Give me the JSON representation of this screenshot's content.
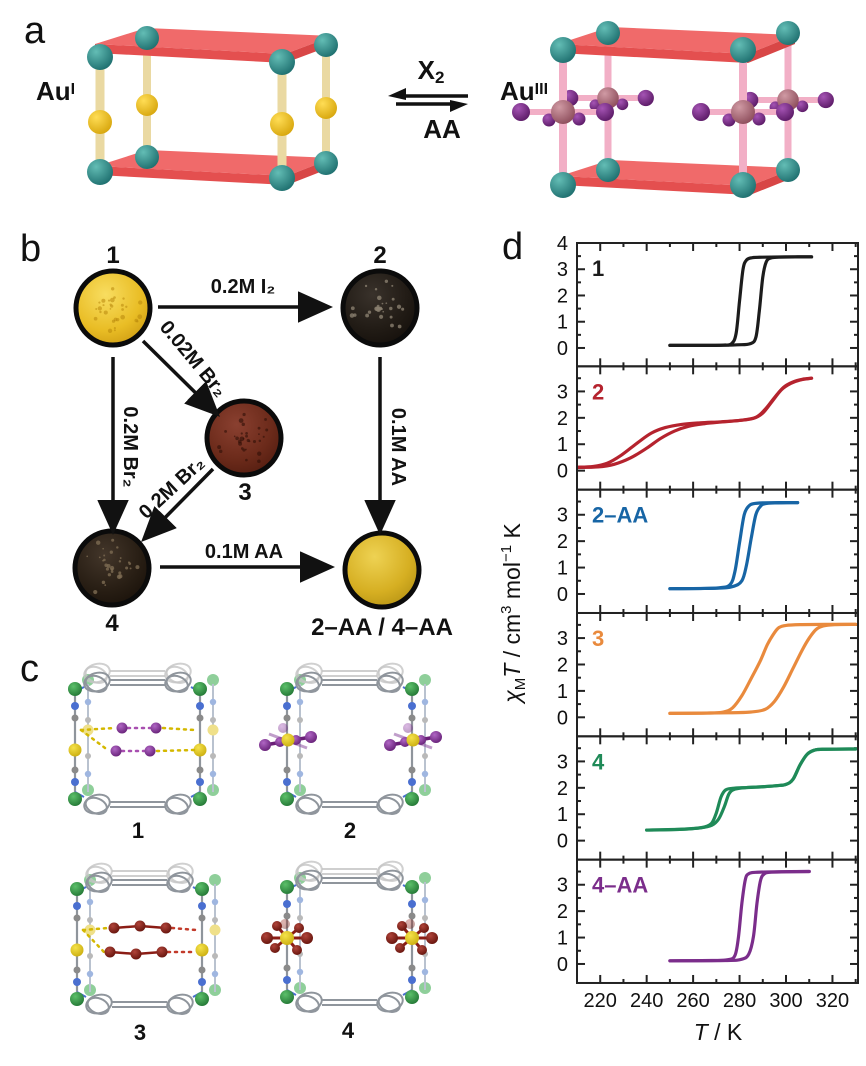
{
  "panels": {
    "a": "a",
    "b": "b",
    "c": "c",
    "d": "d"
  },
  "panel_a": {
    "left_species": {
      "base": "Au",
      "sup": "I"
    },
    "right_species": {
      "base": "Au",
      "sup": "III"
    },
    "forward_reagent": {
      "base": "X",
      "sub": "2"
    },
    "reverse_reagent": "AA",
    "colors": {
      "node_teal": "#2e8f8f",
      "slab_red": "#f06a6a",
      "slab_red_dark": "#e44f4f",
      "pillar_yellow": "#ead9a2",
      "au_i_yellow": "#f0c41e",
      "pillar_pink": "#f2afc6",
      "au_iii_mauve": "#b4737f",
      "halide_purple": "#7c2d86"
    }
  },
  "panel_b": {
    "samples": [
      {
        "label": "1",
        "appearance": "yellow-powder"
      },
      {
        "label": "2",
        "appearance": "black-powder"
      },
      {
        "label": "3",
        "appearance": "dark-red-powder"
      },
      {
        "label": "4",
        "appearance": "dark-brown-powder"
      },
      {
        "label": "2–AA / 4–AA",
        "appearance": "gold-powder"
      }
    ],
    "reagents": {
      "r1_to_2": "0.2M I₂",
      "r1_to_3": "0.02M Br₂",
      "r1_to_4": "0.2M Br₂",
      "r2_to_aa": "0.1M AA",
      "r3_to_4": "0.2M Br₂",
      "r4_to_aa": "0.1M AA"
    }
  },
  "panel_c": {
    "structures": [
      {
        "label": "1",
        "cavity": "iodine-guests"
      },
      {
        "label": "2",
        "cavity": "bound-iodide"
      },
      {
        "label": "3",
        "cavity": "tribromide-guests"
      },
      {
        "label": "4",
        "cavity": "bound-bromide"
      }
    ],
    "colors": {
      "frame_green": "#2f9e44",
      "frame_green_back": "#8fcf9a",
      "nitrogen_blue": "#4a6fd0",
      "carbon_gray": "#8f959c",
      "gold_yellow": "#e8cf1e",
      "iodine_purple": "#8e35a0",
      "bromine_red": "#8b1d15"
    }
  },
  "chart_data": {
    "type": "line",
    "xlabel_parts": {
      "t": "T",
      "rest": " / K"
    },
    "ylabel_parts": {
      "chi": "χ",
      "chi_sub": "M",
      "t": "T",
      "unit1": " / cm",
      "sup1": "3",
      "unit2": " mol",
      "sup2": "−1",
      "unit3": " K"
    },
    "xlim": [
      210,
      331
    ],
    "x_ticks": [
      220,
      240,
      260,
      280,
      300,
      320
    ],
    "x_minor": 10,
    "grid": false,
    "legend": "panel labels top-left, colored",
    "panels": [
      {
        "label": "1",
        "color": "#1c1c1c",
        "ylim": [
          -0.7,
          4.0
        ],
        "yticks": [
          0,
          1,
          2,
          3,
          4
        ],
        "cooling": [
          [
            250,
            0.1
          ],
          [
            264,
            0.1
          ],
          [
            273,
            0.11
          ],
          [
            276.5,
            0.16
          ],
          [
            278.5,
            0.55
          ],
          [
            280,
            1.8
          ],
          [
            281.5,
            3.0
          ],
          [
            283,
            3.35
          ],
          [
            285.5,
            3.44
          ],
          [
            290,
            3.46
          ],
          [
            300,
            3.47
          ],
          [
            311,
            3.47
          ]
        ],
        "heating": [
          [
            250,
            0.1
          ],
          [
            270,
            0.1
          ],
          [
            279,
            0.12
          ],
          [
            284.5,
            0.16
          ],
          [
            287,
            0.4
          ],
          [
            288.5,
            1.4
          ],
          [
            290,
            2.7
          ],
          [
            291.5,
            3.28
          ],
          [
            293.5,
            3.43
          ],
          [
            297,
            3.46
          ],
          [
            305,
            3.47
          ],
          [
            311,
            3.47
          ]
        ]
      },
      {
        "label": "2",
        "color": "#b5232e",
        "ylim": [
          -0.72,
          3.95
        ],
        "yticks": [
          0,
          1,
          2,
          3
        ],
        "cooling": [
          [
            210,
            0.13
          ],
          [
            217,
            0.16
          ],
          [
            223,
            0.28
          ],
          [
            229,
            0.58
          ],
          [
            236,
            1.05
          ],
          [
            242,
            1.42
          ],
          [
            248,
            1.63
          ],
          [
            255,
            1.75
          ],
          [
            263,
            1.81
          ],
          [
            272,
            1.85
          ],
          [
            280,
            1.9
          ],
          [
            286,
            1.98
          ],
          [
            290,
            2.18
          ],
          [
            294,
            2.62
          ],
          [
            298,
            3.06
          ],
          [
            302,
            3.3
          ],
          [
            306,
            3.43
          ],
          [
            311,
            3.5
          ]
        ],
        "heating": [
          [
            210,
            0.12
          ],
          [
            219,
            0.14
          ],
          [
            226,
            0.24
          ],
          [
            233,
            0.48
          ],
          [
            240,
            0.85
          ],
          [
            246,
            1.22
          ],
          [
            252,
            1.5
          ],
          [
            258,
            1.68
          ],
          [
            265,
            1.78
          ],
          [
            272,
            1.84
          ],
          [
            280,
            1.9
          ],
          [
            287,
            2.02
          ],
          [
            291,
            2.32
          ],
          [
            295,
            2.76
          ],
          [
            299,
            3.16
          ],
          [
            303,
            3.36
          ],
          [
            307,
            3.46
          ],
          [
            311,
            3.5
          ]
        ]
      },
      {
        "label": "2–AA",
        "color": "#1765a5",
        "ylim": [
          -0.72,
          3.95
        ],
        "yticks": [
          0,
          1,
          2,
          3
        ],
        "cooling": [
          [
            250,
            0.2
          ],
          [
            265,
            0.21
          ],
          [
            272,
            0.24
          ],
          [
            276,
            0.36
          ],
          [
            278,
            0.85
          ],
          [
            280,
            1.95
          ],
          [
            282,
            3.0
          ],
          [
            284,
            3.33
          ],
          [
            286,
            3.42
          ],
          [
            290,
            3.45
          ],
          [
            298,
            3.46
          ],
          [
            305,
            3.46
          ]
        ],
        "heating": [
          [
            250,
            0.2
          ],
          [
            270,
            0.22
          ],
          [
            277,
            0.28
          ],
          [
            281,
            0.5
          ],
          [
            283,
            1.1
          ],
          [
            285,
            2.1
          ],
          [
            287,
            3.0
          ],
          [
            289,
            3.32
          ],
          [
            291,
            3.42
          ],
          [
            296,
            3.45
          ],
          [
            305,
            3.46
          ]
        ]
      },
      {
        "label": "3",
        "color": "#e98a3d",
        "ylim": [
          -0.72,
          3.95
        ],
        "yticks": [
          0,
          1,
          2,
          3
        ],
        "cooling": [
          [
            250,
            0.15
          ],
          [
            266,
            0.16
          ],
          [
            273,
            0.2
          ],
          [
            277,
            0.36
          ],
          [
            281,
            0.82
          ],
          [
            285,
            1.47
          ],
          [
            289,
            2.15
          ],
          [
            292,
            2.76
          ],
          [
            295,
            3.2
          ],
          [
            297,
            3.4
          ],
          [
            300,
            3.48
          ],
          [
            306,
            3.51
          ],
          [
            318,
            3.52
          ],
          [
            330,
            3.52
          ]
        ],
        "heating": [
          [
            250,
            0.15
          ],
          [
            275,
            0.17
          ],
          [
            285,
            0.2
          ],
          [
            291,
            0.3
          ],
          [
            295,
            0.6
          ],
          [
            299,
            1.15
          ],
          [
            303,
            1.85
          ],
          [
            307,
            2.55
          ],
          [
            310,
            3.0
          ],
          [
            313,
            3.33
          ],
          [
            316,
            3.46
          ],
          [
            321,
            3.51
          ],
          [
            330,
            3.52
          ]
        ]
      },
      {
        "label": "4",
        "color": "#1f8a58",
        "ylim": [
          -0.72,
          3.95
        ],
        "yticks": [
          0,
          1,
          2,
          3
        ],
        "cooling": [
          [
            240,
            0.4
          ],
          [
            252,
            0.42
          ],
          [
            260,
            0.46
          ],
          [
            265,
            0.52
          ],
          [
            268,
            0.66
          ],
          [
            270,
            1.05
          ],
          [
            272,
            1.65
          ],
          [
            274,
            1.92
          ],
          [
            277,
            1.98
          ],
          [
            283,
            2.01
          ],
          [
            290,
            2.04
          ],
          [
            296,
            2.08
          ],
          [
            300,
            2.13
          ],
          [
            303,
            2.32
          ],
          [
            306,
            2.86
          ],
          [
            309,
            3.26
          ],
          [
            312,
            3.42
          ],
          [
            316,
            3.46
          ],
          [
            330,
            3.47
          ]
        ],
        "heating": [
          [
            240,
            0.4
          ],
          [
            255,
            0.43
          ],
          [
            263,
            0.48
          ],
          [
            268,
            0.58
          ],
          [
            271,
            0.82
          ],
          [
            273.5,
            1.3
          ],
          [
            275.5,
            1.78
          ],
          [
            278,
            1.95
          ],
          [
            283,
            2.01
          ],
          [
            290,
            2.04
          ],
          [
            296,
            2.08
          ],
          [
            300,
            2.13
          ],
          [
            303,
            2.32
          ],
          [
            306,
            2.86
          ],
          [
            309,
            3.26
          ],
          [
            312,
            3.42
          ],
          [
            316,
            3.46
          ],
          [
            330,
            3.47
          ]
        ]
      },
      {
        "label": "4–AA",
        "color": "#7b2d8b",
        "ylim": [
          -0.72,
          3.95
        ],
        "yticks": [
          0,
          1,
          2,
          3
        ],
        "cooling": [
          [
            250,
            0.12
          ],
          [
            268,
            0.13
          ],
          [
            275,
            0.16
          ],
          [
            278,
            0.32
          ],
          [
            279.5,
            1.0
          ],
          [
            281,
            2.3
          ],
          [
            282.5,
            3.2
          ],
          [
            284,
            3.42
          ],
          [
            287,
            3.47
          ],
          [
            295,
            3.49
          ],
          [
            310,
            3.5
          ]
        ],
        "heating": [
          [
            250,
            0.12
          ],
          [
            274,
            0.13
          ],
          [
            281,
            0.18
          ],
          [
            284,
            0.38
          ],
          [
            286,
            1.05
          ],
          [
            287.5,
            2.3
          ],
          [
            289,
            3.15
          ],
          [
            290.5,
            3.4
          ],
          [
            293,
            3.47
          ],
          [
            300,
            3.49
          ],
          [
            310,
            3.5
          ]
        ]
      }
    ]
  }
}
